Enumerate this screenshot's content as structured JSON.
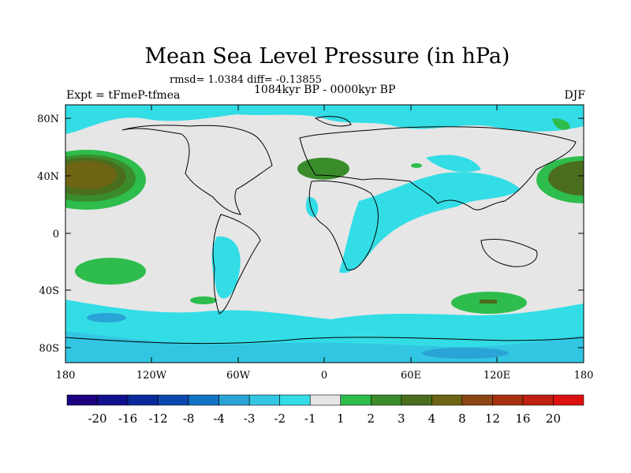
{
  "header": {
    "title": "Mean Sea Level Pressure (in hPa)",
    "stats": "rmsd= 1.0384 diff= -0.13855",
    "experiment": "Expt = tFmeP-tfmea",
    "period": "1084kyr BP - 0000kyr BP",
    "season": "DJF"
  },
  "axes": {
    "x_ticks": [
      "180",
      "120W",
      "60W",
      "0",
      "60E",
      "120E",
      "180"
    ],
    "y_ticks": [
      "80N",
      "40N",
      "0",
      "40S",
      "80S"
    ]
  },
  "colorbar": {
    "labels": [
      "-20",
      "-16",
      "-12",
      "-8",
      "-4",
      "-3",
      "-2",
      "-1",
      "1",
      "2",
      "3",
      "4",
      "8",
      "12",
      "16",
      "20"
    ],
    "colors": [
      "#1a0080",
      "#10108e",
      "#0a2a9c",
      "#0b47ad",
      "#1273c4",
      "#2aa3d6",
      "#33c6e2",
      "#33dde6",
      "#e6e6e6",
      "#2ebd4d",
      "#3a8c2a",
      "#4a6e1e",
      "#6e6414",
      "#8c4614",
      "#a8300f",
      "#c02010",
      "#dd1010"
    ]
  },
  "map": {
    "background_color": "#e6e6e6",
    "regions": [
      {
        "label": "N Pacific high (+4 to +8)",
        "type": "anomaly",
        "color": "#6e6414"
      },
      {
        "label": "NW Pacific high",
        "type": "anomaly",
        "color": "#4a6e1e"
      },
      {
        "label": "Mediterranean high",
        "type": "anomaly",
        "color": "#3a8c2a"
      },
      {
        "label": "S Indian Ocean high",
        "type": "anomaly",
        "color": "#2ebd4d"
      },
      {
        "label": "S Pacific high",
        "type": "anomaly",
        "color": "#2ebd4d"
      },
      {
        "label": "Southern Ocean low",
        "type": "anomaly",
        "color": "#33c6e2"
      },
      {
        "label": "Arctic low",
        "type": "anomaly",
        "color": "#33dde6"
      }
    ]
  }
}
